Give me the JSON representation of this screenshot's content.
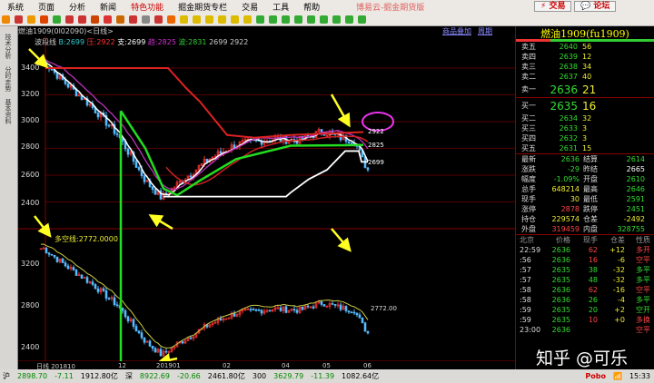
{
  "menu": [
    "系统",
    "页面",
    "分析",
    "新闻",
    "特色功能",
    "掘金期货专栏",
    "交易",
    "工具",
    "帮助"
  ],
  "app_title": "博易云-掘金期货版",
  "buttons": {
    "trade": "交易",
    "forum": "论坛"
  },
  "chart": {
    "header": "燃油1909(0l02090)<日线>",
    "add_product": "商品叠加",
    "period": "周期",
    "indicator": {
      "name": "波段线",
      "b": "B:2699",
      "r": "压:2922",
      "zhi": "支:2699",
      "qu": "趋:2825",
      "bo": "波:2831",
      "extra": "2699 2922"
    },
    "lower_label": "多空线:2772.0000",
    "lower_value": "2772.00",
    "upper_y": [
      "3400",
      "3200",
      "3000",
      "2800",
      "2600",
      "2400"
    ],
    "lower_y": [
      "3200",
      "2800",
      "2400"
    ],
    "x_labels": [
      "日线 201810",
      "12",
      "201901",
      "02",
      "04",
      "05",
      "06"
    ],
    "price_tags": {
      "r": "2922",
      "q": "2825",
      "z": "2699"
    }
  },
  "left_tabs": [
    "技术分析",
    "分时走势",
    "基本资料"
  ],
  "quote": {
    "title": "燃油1909(fu1909)",
    "asks": [
      {
        "l": "卖五",
        "p": "2640",
        "v": "56"
      },
      {
        "l": "卖四",
        "p": "2639",
        "v": "12"
      },
      {
        "l": "卖三",
        "p": "2638",
        "v": "34"
      },
      {
        "l": "卖二",
        "p": "2637",
        "v": "40"
      },
      {
        "l": "卖一",
        "p": "2636",
        "v": "21"
      }
    ],
    "bids": [
      {
        "l": "买一",
        "p": "2635",
        "v": "16"
      },
      {
        "l": "买二",
        "p": "2634",
        "v": "32"
      },
      {
        "l": "买三",
        "p": "2633",
        "v": "3"
      },
      {
        "l": "买四",
        "p": "2632",
        "v": "3"
      },
      {
        "l": "买五",
        "p": "2631",
        "v": "15"
      }
    ],
    "stats": [
      [
        "最新",
        "2636",
        "结算",
        "2614"
      ],
      [
        "涨跌",
        "-29",
        "昨结",
        "2665"
      ],
      [
        "幅度",
        "-1.09%",
        "开盘",
        "2610"
      ],
      [
        "总手",
        "648214",
        "最高",
        "2646"
      ],
      [
        "现手",
        "30",
        "最低",
        "2591"
      ],
      [
        "涨停",
        "2878",
        "跌停",
        "2451"
      ],
      [
        "持仓",
        "229574",
        "仓差",
        "-2492"
      ],
      [
        "外盘",
        "319459",
        "内盘",
        "328755"
      ]
    ],
    "tick_head": [
      "北京",
      "价格",
      "现手",
      "仓差",
      "性质"
    ],
    "ticks": [
      [
        "22:59",
        "2636",
        "62",
        "+12",
        "多开"
      ],
      [
        ":56",
        "2636",
        "16",
        "-6",
        "空平"
      ],
      [
        ":57",
        "2635",
        "38",
        "-32",
        "多平"
      ],
      [
        ":57",
        "2635",
        "48",
        "-32",
        "多平"
      ],
      [
        ":58",
        "2636",
        "62",
        "-16",
        "空平"
      ],
      [
        ":58",
        "2636",
        "26",
        "-4",
        "多平"
      ],
      [
        ":59",
        "2635",
        "20",
        "+2",
        "空开"
      ],
      [
        ":59",
        "2635",
        "10",
        "+0",
        "多换"
      ],
      [
        "23:00",
        "2636",
        "",
        "",
        "空平"
      ]
    ]
  },
  "watermark": "知乎 @可乐",
  "status": {
    "sh": "沪",
    "sh_v": "2898.70",
    "sh_c": "-7.11",
    "sh_a": "1912.80亿",
    "sz": "深",
    "sz_v": "8922.69",
    "sz_c": "-20.66",
    "sz_a": "2461.80亿",
    "hs": "300",
    "hs_v": "3629.79",
    "hs_c": "-11.39",
    "hs_a": "1082.64亿",
    "brand": "Pobo",
    "time": "15:33"
  }
}
